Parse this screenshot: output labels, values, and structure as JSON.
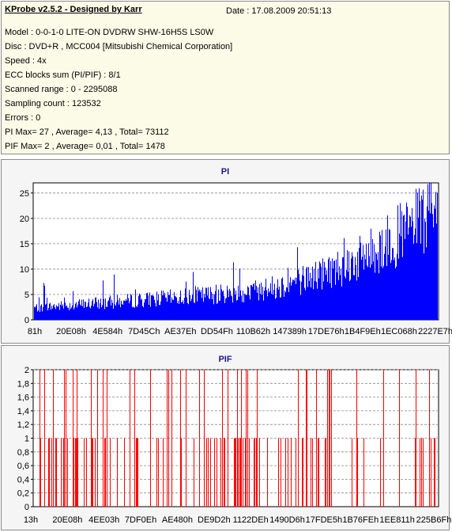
{
  "info": {
    "title": "KProbe v2.5.2 - Designed by Karr",
    "date": "Date : 17.08.2009 20:51:13",
    "lines": [
      "Model : 0-0-1-0 LITE-ON DVDRW SHW-16H5S  LS0W",
      "Disc : DVD+R , MCC004 [Mitsubishi Chemical Corporation]",
      "Speed : 4x",
      "ECC blocks sum (PI/PIF) : 8/1",
      "Scanned range : 0 - 2295088",
      "Sampling count : 123532",
      "Errors : 0",
      "PI Max= 27 , Average= 4,13 , Total= 73112",
      "PIF Max= 2 , Average= 0,01 , Total= 1478"
    ]
  },
  "chart_data": [
    {
      "type": "bar",
      "title": "PI",
      "color": "#0000ff",
      "ylim": [
        0,
        27
      ],
      "yticks": [
        "0",
        "5",
        "10",
        "15",
        "20",
        "25"
      ],
      "xticks": [
        "81h",
        "20E08h",
        "4E584h",
        "7D45Ch",
        "AE37Eh",
        "DD54Fh",
        "110B62h",
        "147389h",
        "17DE76h",
        "1B4F9Eh",
        "1EC068h",
        "2227E7h"
      ],
      "series": [
        {
          "x_fraction": 0.0,
          "avg": 2,
          "peak": 8
        },
        {
          "x_fraction": 0.1,
          "avg": 2.5,
          "peak": 10
        },
        {
          "x_fraction": 0.2,
          "avg": 3,
          "peak": 9
        },
        {
          "x_fraction": 0.3,
          "avg": 3.5,
          "peak": 10
        },
        {
          "x_fraction": 0.4,
          "avg": 4,
          "peak": 10
        },
        {
          "x_fraction": 0.5,
          "avg": 4.5,
          "peak": 12
        },
        {
          "x_fraction": 0.6,
          "avg": 5.5,
          "peak": 15
        },
        {
          "x_fraction": 0.7,
          "avg": 7.5,
          "peak": 16
        },
        {
          "x_fraction": 0.8,
          "avg": 10,
          "peak": 19
        },
        {
          "x_fraction": 0.9,
          "avg": 14,
          "peak": 25
        },
        {
          "x_fraction": 1.0,
          "avg": 18,
          "peak": 27
        }
      ]
    },
    {
      "type": "bar",
      "title": "PIF",
      "color": "#ff0000",
      "ylim": [
        0,
        2
      ],
      "yticks": [
        "0",
        "0,2",
        "0,4",
        "0,6",
        "0,8",
        "1",
        "1,2",
        "1,4",
        "1,6",
        "1,8",
        "2"
      ],
      "xticks": [
        "13h",
        "20E08h",
        "4EE03h",
        "7DF0Eh",
        "AE480h",
        "DE9D2h",
        "1122DEh",
        "1490D6h",
        "17FDE5h",
        "1B76FEh",
        "1EE811h",
        "225B6Fh"
      ]
    }
  ]
}
